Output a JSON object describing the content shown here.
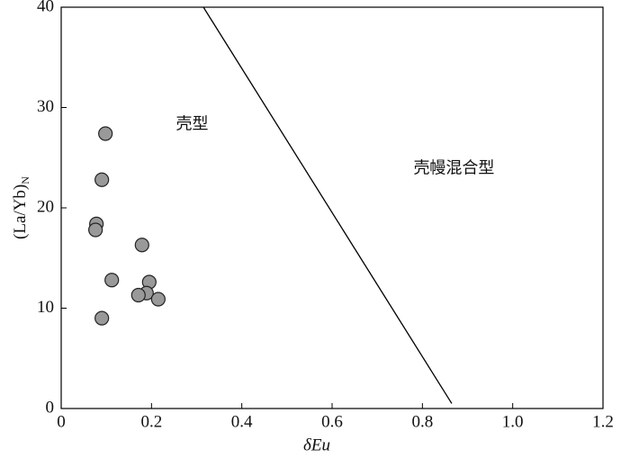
{
  "chart_data": {
    "type": "scatter",
    "xlabel": "δEu",
    "ylabel": "(La/Yb)",
    "ylabel_subscript": "N",
    "xlim": [
      0,
      1.2
    ],
    "ylim": [
      0,
      40
    ],
    "xticks": [
      0,
      0.2,
      0.4,
      0.6,
      0.8,
      {
        "value": 1,
        "label": "1.0"
      },
      1.2
    ],
    "yticks": [
      0,
      10,
      20,
      30,
      40
    ],
    "grid": false,
    "series": [
      {
        "color": "#999999",
        "x": [
          0.098,
          0.09,
          0.078,
          0.076,
          0.179,
          0.112,
          0.195,
          0.189,
          0.171,
          0.215,
          0.09
        ],
        "values": [
          27.4,
          22.8,
          18.4,
          17.8,
          16.3,
          12.8,
          12.6,
          11.5,
          11.3,
          10.9,
          9.0
        ]
      }
    ],
    "lines": [
      {
        "x": [
          0.315,
          0.865
        ],
        "y": [
          40,
          0.5
        ],
        "color": "#000000"
      }
    ],
    "annotations": [
      {
        "text": "壳型",
        "x": 0.29,
        "y": 28.3
      },
      {
        "text": "壳幔混合型",
        "x": 0.87,
        "y": 23.9
      }
    ]
  }
}
